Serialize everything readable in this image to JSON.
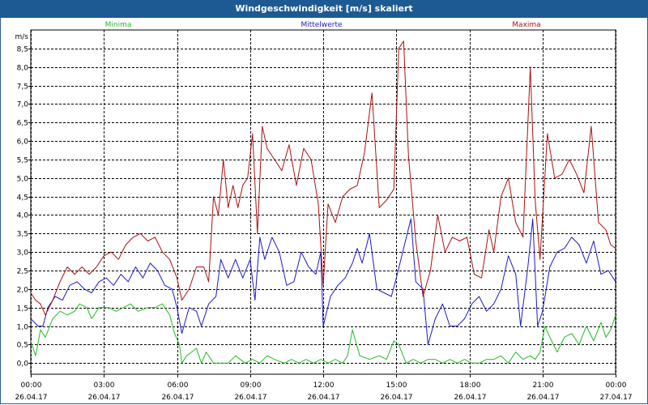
{
  "window": {
    "title": "Windgeschwindigkeit [m/s] skaliert"
  },
  "chart_data": {
    "type": "line",
    "title": "Windgeschwindigkeit [m/s] skaliert",
    "ylabel": "m/s",
    "ylim": [
      -0.3,
      9.0
    ],
    "xlim": [
      0,
      24
    ],
    "yticks": [
      0,
      0.5,
      1,
      1.5,
      2,
      2.5,
      3,
      3.5,
      4,
      4.5,
      5,
      5.5,
      6,
      6.5,
      7,
      7.5,
      8,
      8.5
    ],
    "ytick_labels": [
      "0,0",
      "0,5",
      "1,0",
      "1,5",
      "2,0",
      "2,5",
      "3,0",
      "3,5",
      "4,0",
      "4,5",
      "5,0",
      "5,5",
      "6,0",
      "6,5",
      "7,0",
      "7,5",
      "8,0",
      "8,5"
    ],
    "xticks": [
      {
        "x": 0,
        "time": "00:00",
        "date": "26.04.17"
      },
      {
        "x": 3,
        "time": "03:00",
        "date": "26.04.17"
      },
      {
        "x": 6,
        "time": "06:00",
        "date": "26.04.17"
      },
      {
        "x": 9,
        "time": "09:00",
        "date": "26.04.17"
      },
      {
        "x": 12,
        "time": "12:00",
        "date": "26.04.17"
      },
      {
        "x": 15,
        "time": "15:00",
        "date": "26.04.17"
      },
      {
        "x": 18,
        "time": "18:00",
        "date": "26.04.17"
      },
      {
        "x": 21,
        "time": "21:00",
        "date": "26.04.17"
      },
      {
        "x": 24,
        "time": "00:00",
        "date": "27.04.17"
      }
    ],
    "grid": true,
    "series": [
      {
        "name": "Minima",
        "color": "#22bb22",
        "points": [
          [
            0,
            0.6
          ],
          [
            0.2,
            0.2
          ],
          [
            0.4,
            0.9
          ],
          [
            0.6,
            0.7
          ],
          [
            0.9,
            1.2
          ],
          [
            1.2,
            1.4
          ],
          [
            1.5,
            1.3
          ],
          [
            1.8,
            1.4
          ],
          [
            2.0,
            1.6
          ],
          [
            2.3,
            1.5
          ],
          [
            2.5,
            1.2
          ],
          [
            2.8,
            1.5
          ],
          [
            3.2,
            1.5
          ],
          [
            3.5,
            1.4
          ],
          [
            3.8,
            1.5
          ],
          [
            4.1,
            1.6
          ],
          [
            4.4,
            1.4
          ],
          [
            4.8,
            1.5
          ],
          [
            5.1,
            1.5
          ],
          [
            5.4,
            1.6
          ],
          [
            5.7,
            1.3
          ],
          [
            5.9,
            0.8
          ],
          [
            6.1,
            0.5
          ],
          [
            6.2,
            0.0
          ],
          [
            6.4,
            0.2
          ],
          [
            6.6,
            0.3
          ],
          [
            6.8,
            0.4
          ],
          [
            7.0,
            0.0
          ],
          [
            7.2,
            0.3
          ],
          [
            7.5,
            0.0
          ],
          [
            7.8,
            0.0
          ],
          [
            8.1,
            0.0
          ],
          [
            8.4,
            0.2
          ],
          [
            8.8,
            0.0
          ],
          [
            9.1,
            0.1
          ],
          [
            9.4,
            0.0
          ],
          [
            9.7,
            0.2
          ],
          [
            10.0,
            0.1
          ],
          [
            10.4,
            0.0
          ],
          [
            10.7,
            0.1
          ],
          [
            11.0,
            0.0
          ],
          [
            11.3,
            0.1
          ],
          [
            11.6,
            0.0
          ],
          [
            11.9,
            0.1
          ],
          [
            12.2,
            0.0
          ],
          [
            12.5,
            0.1
          ],
          [
            12.8,
            0.0
          ],
          [
            13.0,
            0.2
          ],
          [
            13.2,
            0.9
          ],
          [
            13.5,
            0.2
          ],
          [
            13.9,
            0.1
          ],
          [
            14.3,
            0.2
          ],
          [
            14.6,
            0.1
          ],
          [
            14.9,
            0.6
          ],
          [
            15.1,
            0.5
          ],
          [
            15.4,
            0.0
          ],
          [
            15.7,
            0.1
          ],
          [
            16.0,
            0.0
          ],
          [
            16.3,
            0.1
          ],
          [
            16.6,
            0.1
          ],
          [
            16.9,
            0.0
          ],
          [
            17.2,
            0.1
          ],
          [
            17.5,
            0.0
          ],
          [
            17.8,
            0.1
          ],
          [
            18.1,
            0.0
          ],
          [
            18.4,
            0.0
          ],
          [
            18.7,
            0.1
          ],
          [
            19.0,
            0.1
          ],
          [
            19.3,
            0.2
          ],
          [
            19.6,
            0.0
          ],
          [
            19.9,
            0.3
          ],
          [
            20.2,
            0.1
          ],
          [
            20.5,
            0.2
          ],
          [
            20.7,
            0.1
          ],
          [
            20.9,
            0.3
          ],
          [
            21.1,
            1.0
          ],
          [
            21.3,
            0.7
          ],
          [
            21.6,
            0.3
          ],
          [
            21.9,
            0.7
          ],
          [
            22.2,
            0.8
          ],
          [
            22.5,
            0.5
          ],
          [
            22.8,
            1.0
          ],
          [
            23.1,
            0.6
          ],
          [
            23.4,
            1.1
          ],
          [
            23.6,
            0.7
          ],
          [
            23.8,
            0.9
          ],
          [
            24.0,
            1.3
          ]
        ]
      },
      {
        "name": "Mittelwerte",
        "color": "#1a1acc",
        "points": [
          [
            0,
            1.2
          ],
          [
            0.3,
            1.0
          ],
          [
            0.5,
            1.0
          ],
          [
            0.7,
            1.5
          ],
          [
            1.0,
            1.8
          ],
          [
            1.3,
            1.7
          ],
          [
            1.6,
            2.1
          ],
          [
            1.9,
            2.2
          ],
          [
            2.2,
            2.0
          ],
          [
            2.5,
            1.9
          ],
          [
            2.8,
            2.2
          ],
          [
            3.1,
            2.3
          ],
          [
            3.4,
            2.1
          ],
          [
            3.7,
            2.4
          ],
          [
            4.0,
            2.2
          ],
          [
            4.3,
            2.6
          ],
          [
            4.6,
            2.3
          ],
          [
            4.9,
            2.7
          ],
          [
            5.2,
            2.5
          ],
          [
            5.5,
            2.1
          ],
          [
            5.8,
            2.0
          ],
          [
            6.0,
            1.5
          ],
          [
            6.2,
            0.8
          ],
          [
            6.5,
            1.5
          ],
          [
            6.8,
            1.4
          ],
          [
            7.0,
            1.0
          ],
          [
            7.3,
            1.6
          ],
          [
            7.6,
            1.8
          ],
          [
            7.8,
            2.8
          ],
          [
            8.1,
            2.3
          ],
          [
            8.4,
            2.8
          ],
          [
            8.7,
            2.3
          ],
          [
            9.0,
            2.8
          ],
          [
            9.2,
            1.7
          ],
          [
            9.4,
            3.4
          ],
          [
            9.6,
            2.8
          ],
          [
            9.9,
            3.4
          ],
          [
            10.2,
            3.0
          ],
          [
            10.5,
            2.1
          ],
          [
            10.8,
            2.2
          ],
          [
            11.1,
            3.0
          ],
          [
            11.4,
            2.6
          ],
          [
            11.7,
            2.4
          ],
          [
            11.9,
            3.0
          ],
          [
            12.0,
            1.0
          ],
          [
            12.3,
            1.8
          ],
          [
            12.6,
            2.1
          ],
          [
            12.9,
            2.3
          ],
          [
            13.2,
            2.7
          ],
          [
            13.4,
            3.1
          ],
          [
            13.6,
            2.7
          ],
          [
            13.9,
            3.5
          ],
          [
            14.2,
            2.0
          ],
          [
            14.5,
            1.9
          ],
          [
            14.8,
            1.8
          ],
          [
            15.0,
            2.3
          ],
          [
            15.3,
            3.1
          ],
          [
            15.6,
            3.9
          ],
          [
            15.8,
            2.2
          ],
          [
            16.1,
            2.0
          ],
          [
            16.3,
            0.5
          ],
          [
            16.6,
            1.2
          ],
          [
            16.9,
            1.6
          ],
          [
            17.2,
            1.0
          ],
          [
            17.5,
            1.0
          ],
          [
            17.8,
            1.2
          ],
          [
            18.1,
            1.6
          ],
          [
            18.4,
            1.8
          ],
          [
            18.7,
            1.4
          ],
          [
            19.0,
            1.6
          ],
          [
            19.3,
            2.0
          ],
          [
            19.6,
            2.9
          ],
          [
            19.9,
            2.4
          ],
          [
            20.1,
            1.0
          ],
          [
            20.4,
            2.6
          ],
          [
            20.6,
            3.9
          ],
          [
            20.8,
            1.0
          ],
          [
            21.0,
            1.4
          ],
          [
            21.3,
            2.6
          ],
          [
            21.6,
            3.0
          ],
          [
            21.9,
            3.1
          ],
          [
            22.2,
            3.4
          ],
          [
            22.5,
            3.2
          ],
          [
            22.8,
            2.7
          ],
          [
            23.1,
            3.3
          ],
          [
            23.4,
            2.4
          ],
          [
            23.7,
            2.5
          ],
          [
            24.0,
            2.2
          ]
        ]
      },
      {
        "name": "Maxima",
        "color": "#aa1111",
        "points": [
          [
            0,
            1.9
          ],
          [
            0.2,
            1.7
          ],
          [
            0.4,
            1.6
          ],
          [
            0.6,
            1.3
          ],
          [
            0.9,
            1.7
          ],
          [
            1.2,
            2.2
          ],
          [
            1.5,
            2.6
          ],
          [
            1.8,
            2.4
          ],
          [
            2.1,
            2.6
          ],
          [
            2.4,
            2.4
          ],
          [
            2.7,
            2.6
          ],
          [
            3.0,
            2.9
          ],
          [
            3.3,
            3.0
          ],
          [
            3.6,
            2.8
          ],
          [
            3.9,
            3.2
          ],
          [
            4.2,
            3.4
          ],
          [
            4.5,
            3.5
          ],
          [
            4.8,
            3.3
          ],
          [
            5.1,
            3.4
          ],
          [
            5.4,
            3.0
          ],
          [
            5.7,
            2.8
          ],
          [
            6.0,
            2.3
          ],
          [
            6.2,
            1.7
          ],
          [
            6.5,
            2.0
          ],
          [
            6.8,
            2.6
          ],
          [
            7.1,
            2.6
          ],
          [
            7.3,
            2.2
          ],
          [
            7.5,
            4.5
          ],
          [
            7.7,
            4.0
          ],
          [
            7.9,
            5.5
          ],
          [
            8.1,
            4.2
          ],
          [
            8.3,
            4.8
          ],
          [
            8.5,
            4.2
          ],
          [
            8.7,
            4.8
          ],
          [
            8.9,
            5.0
          ],
          [
            9.1,
            6.2
          ],
          [
            9.3,
            3.5
          ],
          [
            9.5,
            6.4
          ],
          [
            9.7,
            5.8
          ],
          [
            10.0,
            5.5
          ],
          [
            10.3,
            5.2
          ],
          [
            10.6,
            5.9
          ],
          [
            10.9,
            4.8
          ],
          [
            11.2,
            5.8
          ],
          [
            11.5,
            5.5
          ],
          [
            11.8,
            4.3
          ],
          [
            12.0,
            2.1
          ],
          [
            12.2,
            4.3
          ],
          [
            12.5,
            3.8
          ],
          [
            12.8,
            4.5
          ],
          [
            13.1,
            4.7
          ],
          [
            13.4,
            4.8
          ],
          [
            13.7,
            5.7
          ],
          [
            14.0,
            7.3
          ],
          [
            14.3,
            4.2
          ],
          [
            14.6,
            4.4
          ],
          [
            14.9,
            4.7
          ],
          [
            15.1,
            8.5
          ],
          [
            15.3,
            8.7
          ],
          [
            15.5,
            5.6
          ],
          [
            15.8,
            3.3
          ],
          [
            16.1,
            1.8
          ],
          [
            16.4,
            2.5
          ],
          [
            16.7,
            4.0
          ],
          [
            17.0,
            3.0
          ],
          [
            17.3,
            3.4
          ],
          [
            17.6,
            3.3
          ],
          [
            17.9,
            3.4
          ],
          [
            18.2,
            2.4
          ],
          [
            18.5,
            2.3
          ],
          [
            18.8,
            3.6
          ],
          [
            19.0,
            3.0
          ],
          [
            19.3,
            4.5
          ],
          [
            19.6,
            5.0
          ],
          [
            19.9,
            3.8
          ],
          [
            20.2,
            3.4
          ],
          [
            20.5,
            8.0
          ],
          [
            20.7,
            4.4
          ],
          [
            20.9,
            2.8
          ],
          [
            21.2,
            6.2
          ],
          [
            21.5,
            5.0
          ],
          [
            21.8,
            5.1
          ],
          [
            22.1,
            5.5
          ],
          [
            22.4,
            5.1
          ],
          [
            22.7,
            4.6
          ],
          [
            23.0,
            6.4
          ],
          [
            23.3,
            3.8
          ],
          [
            23.6,
            3.6
          ],
          [
            23.8,
            3.2
          ],
          [
            24.0,
            3.1
          ]
        ]
      }
    ]
  }
}
